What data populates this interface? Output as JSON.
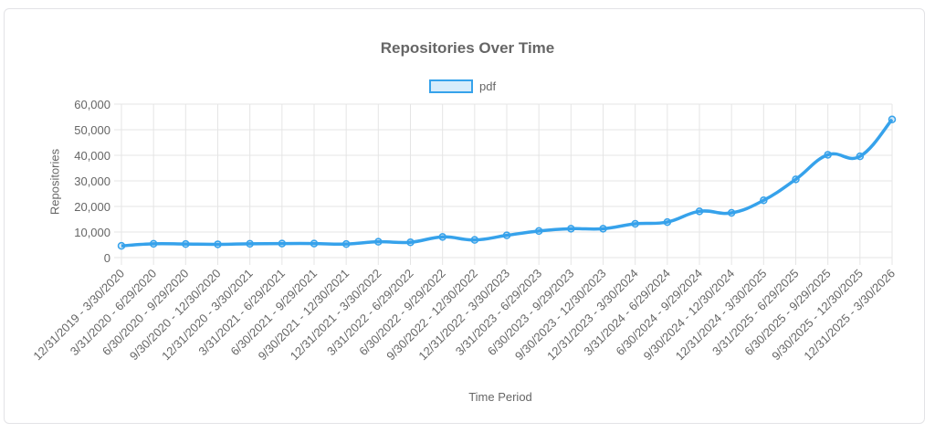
{
  "chart_data": {
    "type": "line",
    "title": "Repositories Over Time",
    "xlabel": "Time Period",
    "ylabel": "Repositories",
    "ylim": [
      0,
      60000
    ],
    "yticks": [
      "0",
      "10,000",
      "20,000",
      "30,000",
      "40,000",
      "50,000",
      "60,000"
    ],
    "grid": true,
    "legend_position": "top",
    "categories": [
      "12/31/2019 - 3/30/2020",
      "3/31/2020 - 6/29/2020",
      "6/30/2020 - 9/29/2020",
      "9/30/2020 - 12/30/2020",
      "12/31/2020 - 3/30/2021",
      "3/31/2021 - 6/29/2021",
      "6/30/2021 - 9/29/2021",
      "9/30/2021 - 12/30/2021",
      "12/31/2021 - 3/30/2022",
      "3/31/2022 - 6/29/2022",
      "6/30/2022 - 9/29/2022",
      "9/30/2022 - 12/30/2022",
      "12/31/2022 - 3/30/2023",
      "3/31/2023 - 6/29/2023",
      "6/30/2023 - 9/29/2023",
      "9/30/2023 - 12/30/2023",
      "12/31/2023 - 3/30/2024",
      "3/31/2024 - 6/29/2024",
      "6/30/2024 - 9/29/2024",
      "9/30/2024 - 12/30/2024",
      "12/31/2024 - 3/30/2025",
      "3/31/2025 - 6/29/2025",
      "6/30/2025 - 9/29/2025",
      "9/30/2025 - 12/30/2025",
      "12/31/2025 - 3/30/2026"
    ],
    "series": [
      {
        "name": "pdf",
        "color": "#36a2eb",
        "fill": "rgba(54,162,235,0.2)",
        "values": [
          4600,
          5400,
          5300,
          5200,
          5400,
          5500,
          5500,
          5300,
          6200,
          6000,
          8100,
          6900,
          8700,
          10400,
          11300,
          11300,
          13200,
          13900,
          18100,
          17500,
          22400,
          30600,
          40200,
          39600,
          54000
        ]
      }
    ]
  }
}
